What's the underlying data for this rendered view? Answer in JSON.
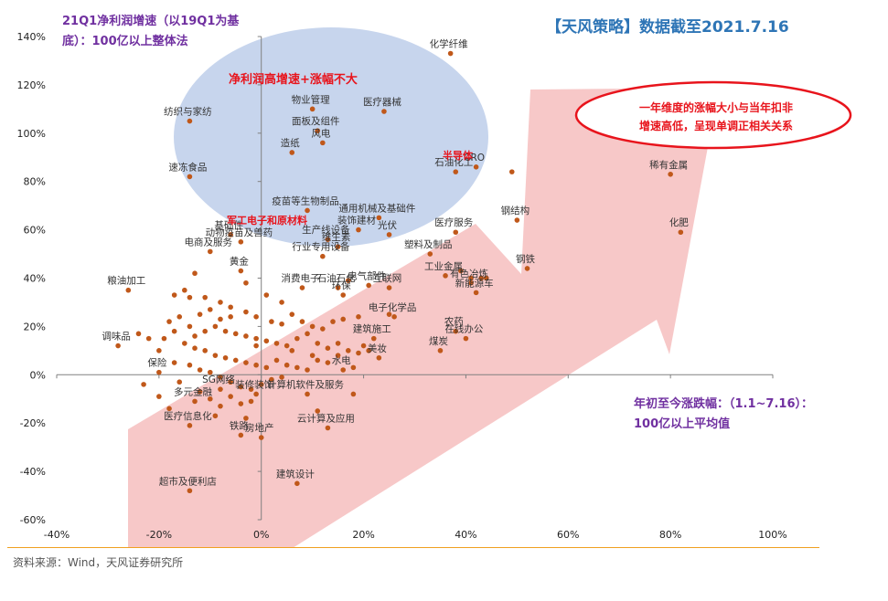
{
  "chart_data": {
    "type": "scatter",
    "y_title": "21Q1净利润增速（以19Q1为基底）：100亿以上整体法",
    "y_title_lines": [
      "21Q1净利润增速（以19Q1为基",
      "底）：100亿以上整体法"
    ],
    "x_title": "年初至今涨跌幅：（1.1~7.16）：100亿以上平均值",
    "x_title_lines": [
      "年初至今涨跌幅：（1.1~7.16）：",
      "100亿以上平均值"
    ],
    "header": "【天风策略】数据截至2021.7.16",
    "xlim": [
      -40,
      100
    ],
    "ylim": [
      -60,
      140
    ],
    "x_ticks": [
      "-40%",
      "-20%",
      "0%",
      "20%",
      "40%",
      "60%",
      "80%",
      "100%"
    ],
    "y_ticks": [
      "140%",
      "120%",
      "100%",
      "80%",
      "60%",
      "40%",
      "20%",
      "0%",
      "-20%",
      "-40%",
      "-60%"
    ],
    "annotations": {
      "ellipse_label": "净利润高增速+涨幅不大",
      "callout": [
        "一年维度的涨幅大小与当年扣非",
        "增速高低，呈现单调正相关关系"
      ],
      "semi": "半导体",
      "mil": "军工电子和原材料"
    },
    "colors": {
      "point": "#c0581a",
      "ellipse": "#b4c7e7",
      "arrow": "#f4b6b6",
      "red": "#e8141c",
      "purple": "#7030a0",
      "blue": "#2e75b6"
    },
    "labeled_points": [
      {
        "name": "化学纤维",
        "x": 37,
        "y": 133
      },
      {
        "name": "物业管理",
        "x": 10,
        "y": 110
      },
      {
        "name": "医疗器械",
        "x": 24,
        "y": 109
      },
      {
        "name": "纺织与家纺",
        "x": -14,
        "y": 105
      },
      {
        "name": "面板及组件",
        "x": 11,
        "y": 101
      },
      {
        "name": "风电",
        "x": 12,
        "y": 96
      },
      {
        "name": "造纸",
        "x": 6,
        "y": 92
      },
      {
        "name": "CRO",
        "x": 42,
        "y": 86
      },
      {
        "name": "速冻食品",
        "x": -14,
        "y": 82
      },
      {
        "name": "石油化工",
        "x": 38,
        "y": 84
      },
      {
        "name": "稀有金属",
        "x": 80,
        "y": 83
      },
      {
        "name": "疫苗等生物制品",
        "x": 9,
        "y": 68
      },
      {
        "name": "通用机械及基础件",
        "x": 23,
        "y": 65
      },
      {
        "name": "钢结构",
        "x": 50,
        "y": 64
      },
      {
        "name": "装饰建材",
        "x": 19,
        "y": 60
      },
      {
        "name": "医疗服务",
        "x": 38,
        "y": 59
      },
      {
        "name": "化肥",
        "x": 82,
        "y": 59
      },
      {
        "name": "光伏",
        "x": 25,
        "y": 58
      },
      {
        "name": "生产线设备",
        "x": 13,
        "y": 56
      },
      {
        "name": "基础件",
        "x": -6,
        "y": 58
      },
      {
        "name": "动物疫苗及兽药",
        "x": -4,
        "y": 55
      },
      {
        "name": "维生素",
        "x": 15,
        "y": 53
      },
      {
        "name": "塑料及制品",
        "x": 33,
        "y": 50
      },
      {
        "name": "电商及服务",
        "x": -10,
        "y": 51
      },
      {
        "name": "行业专用设备",
        "x": 12,
        "y": 49
      },
      {
        "name": "黄金",
        "x": -4,
        "y": 43
      },
      {
        "name": "钢铁",
        "x": 52,
        "y": 44
      },
      {
        "name": "工业金属",
        "x": 36,
        "y": 41
      },
      {
        "name": "粮油加工",
        "x": -26,
        "y": 35
      },
      {
        "name": "消费电子",
        "x": 8,
        "y": 36
      },
      {
        "name": "电气部件",
        "x": 21,
        "y": 37
      },
      {
        "name": "石油石化",
        "x": 15,
        "y": 36
      },
      {
        "name": "互联网",
        "x": 25,
        "y": 36
      },
      {
        "name": "有色冶炼",
        "x": 41,
        "y": 38
      },
      {
        "name": "新能源车",
        "x": 42,
        "y": 34
      },
      {
        "name": "环保",
        "x": 16,
        "y": 33
      },
      {
        "name": "电子化学品",
        "x": 26,
        "y": 24
      },
      {
        "name": "调味品",
        "x": -28,
        "y": 12
      },
      {
        "name": "农药",
        "x": 38,
        "y": 18
      },
      {
        "name": "在线办公",
        "x": 40,
        "y": 15
      },
      {
        "name": "煤炭",
        "x": 35,
        "y": 10
      },
      {
        "name": "美妆",
        "x": 23,
        "y": 7
      },
      {
        "name": "建筑施工",
        "x": 22,
        "y": 15
      },
      {
        "name": "保险",
        "x": -20,
        "y": 1
      },
      {
        "name": "水电",
        "x": 16,
        "y": 2
      },
      {
        "name": "计算机软件及服务",
        "x": 9,
        "y": -8
      },
      {
        "name": "SG网络",
        "x": -8,
        "y": -6
      },
      {
        "name": "装修装饰",
        "x": -1,
        "y": -8
      },
      {
        "name": "多元金融",
        "x": -13,
        "y": -11
      },
      {
        "name": "医疗信息化",
        "x": -14,
        "y": -21
      },
      {
        "name": "铁路",
        "x": -4,
        "y": -25
      },
      {
        "name": "房地产",
        "x": 0,
        "y": -26
      },
      {
        "name": "云计算及应用",
        "x": 13,
        "y": -22
      },
      {
        "name": "建筑设计",
        "x": 7,
        "y": -45
      },
      {
        "name": "超市及便利店",
        "x": -14,
        "y": -48
      }
    ],
    "extra_points": [
      [
        49,
        84
      ],
      [
        43,
        40
      ],
      [
        41,
        40
      ],
      [
        39,
        43
      ],
      [
        44,
        40
      ],
      [
        17,
        39
      ],
      [
        25,
        25
      ],
      [
        -13,
        42
      ],
      [
        -15,
        35
      ],
      [
        -17,
        33
      ],
      [
        -14,
        32
      ],
      [
        -11,
        32
      ],
      [
        -8,
        30
      ],
      [
        -6,
        28
      ],
      [
        -10,
        27
      ],
      [
        -12,
        25
      ],
      [
        -16,
        24
      ],
      [
        -18,
        22
      ],
      [
        -14,
        20
      ],
      [
        -9,
        20
      ],
      [
        -7,
        18
      ],
      [
        -5,
        17
      ],
      [
        -3,
        16
      ],
      [
        -1,
        15
      ],
      [
        1,
        14
      ],
      [
        3,
        13
      ],
      [
        5,
        12
      ],
      [
        7,
        15
      ],
      [
        9,
        17
      ],
      [
        11,
        13
      ],
      [
        13,
        11
      ],
      [
        15,
        13
      ],
      [
        17,
        10
      ],
      [
        19,
        9
      ],
      [
        21,
        10
      ],
      [
        -19,
        15
      ],
      [
        -15,
        13
      ],
      [
        -13,
        11
      ],
      [
        -11,
        10
      ],
      [
        -9,
        8
      ],
      [
        -7,
        7
      ],
      [
        -5,
        6
      ],
      [
        -3,
        5
      ],
      [
        -1,
        4
      ],
      [
        1,
        3
      ],
      [
        3,
        6
      ],
      [
        5,
        4
      ],
      [
        7,
        3
      ],
      [
        9,
        2
      ],
      [
        11,
        6
      ],
      [
        13,
        5
      ],
      [
        15,
        8
      ],
      [
        18,
        3
      ],
      [
        -17,
        5
      ],
      [
        -14,
        4
      ],
      [
        -12,
        2
      ],
      [
        -10,
        1
      ],
      [
        -8,
        -1
      ],
      [
        -6,
        -3
      ],
      [
        -4,
        -5
      ],
      [
        -2,
        -6
      ],
      [
        0,
        -4
      ],
      [
        2,
        -2
      ],
      [
        4,
        -1
      ],
      [
        -16,
        -3
      ],
      [
        -12,
        -7
      ],
      [
        -10,
        -10
      ],
      [
        -8,
        -13
      ],
      [
        -4,
        -12
      ],
      [
        -2,
        -11
      ],
      [
        -6,
        -9
      ],
      [
        -23,
        -4
      ],
      [
        -20,
        -9
      ],
      [
        -18,
        -14
      ],
      [
        -9,
        -17
      ],
      [
        -3,
        -18
      ],
      [
        18,
        -8
      ],
      [
        11,
        -15
      ],
      [
        -1,
        24
      ],
      [
        -3,
        26
      ],
      [
        -6,
        24
      ],
      [
        -8,
        23
      ],
      [
        2,
        22
      ],
      [
        4,
        21
      ],
      [
        6,
        25
      ],
      [
        8,
        22
      ],
      [
        10,
        20
      ],
      [
        12,
        19
      ],
      [
        14,
        22
      ],
      [
        -20,
        10
      ],
      [
        -22,
        15
      ],
      [
        -24,
        17
      ],
      [
        -17,
        18
      ],
      [
        -3,
        38
      ],
      [
        1,
        33
      ],
      [
        4,
        30
      ],
      [
        16,
        23
      ],
      [
        19,
        24
      ],
      [
        -13,
        16
      ],
      [
        -11,
        18
      ],
      [
        -1,
        12
      ],
      [
        6,
        10
      ],
      [
        10,
        8
      ],
      [
        20,
        12
      ]
    ]
  }
}
